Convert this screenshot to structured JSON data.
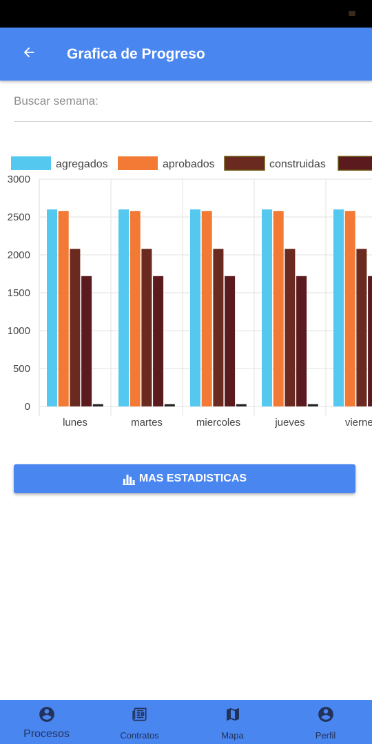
{
  "app_bar": {
    "title": "Grafica de Progreso",
    "back_icon": "arrow-back-icon"
  },
  "search": {
    "placeholder": "Buscar semana:",
    "value": ""
  },
  "chart_data": {
    "type": "bar",
    "categories": [
      "lunes",
      "martes",
      "miercoles",
      "jueves",
      "viernes"
    ],
    "series": [
      {
        "name": "agregados",
        "color": "#55c8f0",
        "values": [
          2600,
          2600,
          2600,
          2600,
          2600
        ]
      },
      {
        "name": "aprobados",
        "color": "#f27a35",
        "values": [
          2580,
          2580,
          2580,
          2580,
          2580
        ]
      },
      {
        "name": "construidas",
        "color": "#6b2a1f",
        "values": [
          2080,
          2080,
          2080,
          2080,
          2080
        ]
      },
      {
        "name": "",
        "color": "#5a1a1e",
        "values": [
          1720,
          1720,
          1720,
          1720,
          1720
        ]
      },
      {
        "name": "",
        "color": "#222222",
        "values": [
          30,
          30,
          30,
          30,
          30
        ]
      }
    ],
    "yticks": [
      0,
      500,
      1000,
      1500,
      2000,
      2500,
      3000
    ],
    "ylim": [
      0,
      3000
    ],
    "grid": true,
    "legend_position": "top"
  },
  "stats_button": {
    "label": "MAS ESTADISTICAS",
    "icon": "bar-chart-icon"
  },
  "bottom_nav": [
    {
      "label": "Procesos",
      "icon": "account-circle-icon",
      "active": true
    },
    {
      "label": "Contratos",
      "icon": "newspaper-icon",
      "active": false
    },
    {
      "label": "Mapa",
      "icon": "map-icon",
      "active": false
    },
    {
      "label": "Perfil",
      "icon": "account-circle-icon",
      "active": false
    }
  ]
}
